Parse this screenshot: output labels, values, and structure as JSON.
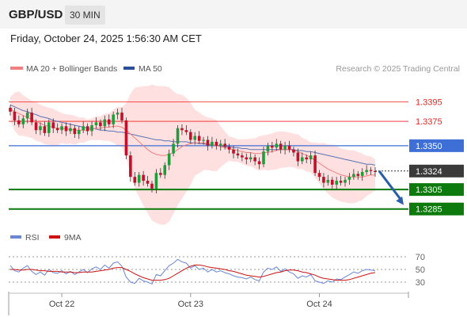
{
  "header": {
    "pair": "GBP/USD",
    "timeframe": "30 MIN"
  },
  "subtitle": "Friday, October 24, 2025 1:56:30 AM CET",
  "legend": {
    "bb": "MA 20 + Bollinger Bands",
    "ma50": "MA 50",
    "rsi": "RSI",
    "rsi_ma": "9MA"
  },
  "copyright": "Research © 2025 Trading Central",
  "colors": {
    "bb_band": "#ffd6d6",
    "ma20": "#f08080",
    "ma50": "#5a74b5",
    "candle_up": "#1f9d3a",
    "candle_down": "#c0102a",
    "resistance": "#ee2222",
    "pivot": "#3d6fd6",
    "support": "#0c7a0c",
    "forecast": "#2a5ea8",
    "rsi": "#6b87d6",
    "rsi_ma": "#cc1111"
  },
  "chart_data": {
    "type": "candlestick",
    "instrument": "GBP/USD",
    "timeframe": "30 MIN",
    "x_ticks": [
      "Oct 22",
      "Oct 23",
      "Oct 24"
    ],
    "y_range": [
      1.3275,
      1.3415
    ],
    "current_price": 1.3324,
    "levels": [
      {
        "value": 1.3395,
        "label": "1.3395",
        "kind": "resistance"
      },
      {
        "value": 1.3375,
        "label": "1.3375",
        "kind": "resistance"
      },
      {
        "value": 1.335,
        "label": "1.3350",
        "kind": "pivot"
      },
      {
        "value": 1.3324,
        "label": "1.3324",
        "kind": "last"
      },
      {
        "value": 1.3305,
        "label": "1.3305",
        "kind": "support"
      },
      {
        "value": 1.3285,
        "label": "1.3285",
        "kind": "support"
      }
    ],
    "forecast": {
      "from": 1.3324,
      "to": 1.3285
    },
    "close_series": [
      1.3385,
      1.3376,
      1.3372,
      1.3378,
      1.3384,
      1.3374,
      1.3366,
      1.337,
      1.3363,
      1.3374,
      1.3368,
      1.3366,
      1.337,
      1.3365,
      1.3368,
      1.3362,
      1.3366,
      1.337,
      1.3365,
      1.3371,
      1.3374,
      1.337,
      1.3377,
      1.3372,
      1.3382,
      1.3384,
      1.3376,
      1.334,
      1.3318,
      1.3312,
      1.332,
      1.3314,
      1.3311,
      1.3306,
      1.3322,
      1.332,
      1.333,
      1.3342,
      1.3352,
      1.3368,
      1.3366,
      1.3364,
      1.3356,
      1.336,
      1.3355,
      1.3356,
      1.335,
      1.3354,
      1.335,
      1.3352,
      1.3349,
      1.3346,
      1.3342,
      1.334,
      1.3338,
      1.3336,
      1.3338,
      1.3334,
      1.3331,
      1.3344,
      1.335,
      1.3348,
      1.3352,
      1.3346,
      1.335,
      1.3346,
      1.3343,
      1.3334,
      1.3338,
      1.3336,
      1.334,
      1.3322,
      1.3318,
      1.3312,
      1.3315,
      1.331,
      1.3314,
      1.3312,
      1.3315,
      1.3318,
      1.3321,
      1.3319,
      1.3323,
      1.3325,
      1.3324,
      1.3323
    ],
    "ma20_series": [
      1.3388,
      1.3385,
      1.3383,
      1.3381,
      1.3379,
      1.3377,
      1.3375,
      1.3373,
      1.3371,
      1.337,
      1.3369,
      1.3368,
      1.3368,
      1.3367,
      1.3367,
      1.3366,
      1.3366,
      1.3366,
      1.3366,
      1.3367,
      1.3368,
      1.3368,
      1.3369,
      1.3369,
      1.337,
      1.337,
      1.3369,
      1.3366,
      1.3362,
      1.3358,
      1.3354,
      1.335,
      1.3346,
      1.3343,
      1.3341,
      1.334,
      1.334,
      1.3341,
      1.3343,
      1.3346,
      1.3349,
      1.3351,
      1.3352,
      1.3353,
      1.3353,
      1.3353,
      1.3352,
      1.3351,
      1.335,
      1.3349,
      1.3348,
      1.3347,
      1.3346,
      1.3345,
      1.3344,
      1.3343,
      1.3343,
      1.3342,
      1.3342,
      1.3343,
      1.3343,
      1.3344,
      1.3345,
      1.3346,
      1.3346,
      1.3346,
      1.3345,
      1.3344,
      1.3342,
      1.334,
      1.3338,
      1.3335,
      1.3332,
      1.3329,
      1.3326,
      1.3324,
      1.3322,
      1.332,
      1.3319,
      1.3318,
      1.3318,
      1.3318,
      1.3318,
      1.3319,
      1.332,
      1.332
    ],
    "ma50_series": [
      1.3392,
      1.339,
      1.3388,
      1.3386,
      1.3385,
      1.3383,
      1.3382,
      1.338,
      1.3379,
      1.3378,
      1.3376,
      1.3375,
      1.3374,
      1.3373,
      1.3372,
      1.3371,
      1.337,
      1.3369,
      1.3368,
      1.3368,
      1.3367,
      1.3366,
      1.3366,
      1.3365,
      1.3365,
      1.3364,
      1.3364,
      1.3363,
      1.3362,
      1.3361,
      1.336,
      1.3359,
      1.3358,
      1.3357,
      1.3356,
      1.3356,
      1.3355,
      1.3355,
      1.3354,
      1.3354,
      1.3354,
      1.3354,
      1.3353,
      1.3353,
      1.3352,
      1.3352,
      1.3351,
      1.3351,
      1.335,
      1.335,
      1.3349,
      1.3349,
      1.3348,
      1.3348,
      1.3347,
      1.3347,
      1.3346,
      1.3346,
      1.3346,
      1.3346,
      1.3346,
      1.3346,
      1.3346,
      1.3346,
      1.3346,
      1.3346,
      1.3346,
      1.3345,
      1.3345,
      1.3344,
      1.3344,
      1.3343,
      1.3342,
      1.3341,
      1.334,
      1.3339,
      1.3338,
      1.3337,
      1.3336,
      1.3335,
      1.3334,
      1.3333,
      1.3332,
      1.3331,
      1.3331,
      1.333
    ],
    "rsi": {
      "levels": [
        70,
        50,
        30
      ],
      "range": [
        20,
        80
      ],
      "rsi_series": [
        56,
        48,
        46,
        52,
        56,
        47,
        42,
        46,
        41,
        50,
        45,
        44,
        48,
        43,
        47,
        42,
        46,
        50,
        45,
        51,
        54,
        50,
        57,
        52,
        60,
        62,
        55,
        38,
        30,
        28,
        36,
        32,
        30,
        27,
        42,
        40,
        48,
        56,
        60,
        66,
        62,
        60,
        52,
        56,
        50,
        52,
        46,
        50,
        46,
        48,
        45,
        43,
        40,
        38,
        37,
        35,
        38,
        34,
        32,
        46,
        52,
        50,
        54,
        47,
        51,
        46,
        43,
        36,
        40,
        38,
        42,
        32,
        30,
        28,
        32,
        30,
        35,
        34,
        38,
        42,
        46,
        44,
        48,
        50,
        49,
        48
      ],
      "ma_series": [
        50,
        50,
        49,
        49,
        50,
        50,
        49,
        48,
        48,
        47,
        47,
        47,
        46,
        46,
        46,
        45,
        45,
        46,
        46,
        46,
        47,
        48,
        49,
        50,
        52,
        53,
        53,
        50,
        47,
        43,
        40,
        37,
        35,
        33,
        33,
        33,
        34,
        36,
        40,
        44,
        48,
        52,
        55,
        57,
        57,
        56,
        54,
        53,
        52,
        51,
        50,
        48,
        47,
        45,
        43,
        41,
        40,
        39,
        38,
        39,
        41,
        43,
        45,
        46,
        48,
        49,
        49,
        48,
        46,
        45,
        43,
        41,
        38,
        36,
        35,
        34,
        33,
        33,
        33,
        34,
        36,
        38,
        40,
        42,
        44,
        45
      ]
    }
  }
}
